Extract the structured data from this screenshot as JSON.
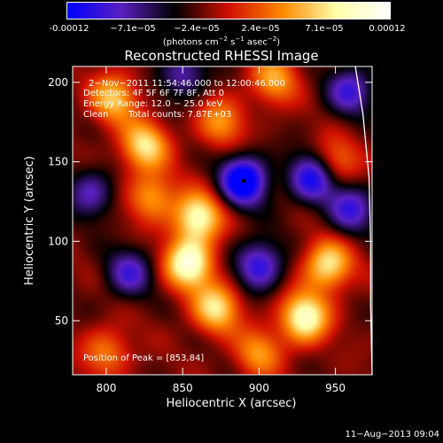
{
  "colorbar": {
    "ticks": [
      "-0.00012",
      "−7.1e−05",
      "−2.4e−05",
      "2.4e−05",
      "7.1e−05",
      "0.00012"
    ],
    "units_prefix": "(photons cm",
    "units_sup1": "−2",
    "units_mid1": " s",
    "units_sup2": "−1",
    "units_mid2": " asec",
    "units_sup3": "−2",
    "units_suffix": ")",
    "colors": [
      "#0000ff",
      "#5a20c0",
      "#000000",
      "#d01000",
      "#ff8800",
      "#ffffaa",
      "#ffffff"
    ]
  },
  "chart_data": {
    "type": "heatmap",
    "title": "Reconstructed RHESSI Image",
    "xlabel": "Heliocentric X (arcsec)",
    "ylabel": "Heliocentric Y (arcsec)",
    "xlim": [
      778,
      974
    ],
    "ylim": [
      16,
      210
    ],
    "x_ticks": [
      800,
      850,
      900,
      950
    ],
    "y_ticks": [
      50,
      100,
      150,
      200
    ],
    "annotations": {
      "time_range": "2−Nov−2011 11:54:46.000 to 12:00:46.000",
      "detectors": "Detectors: 4F 5F 6F 7F 8F, Att 0",
      "energy_range": "Energy Range: 12.0 − 25.0 keV",
      "clean_label": "Clean",
      "total_counts": "Total counts: 7.87E+03",
      "peak_position": "Position of Peak = [853,84]"
    },
    "peak_marker": {
      "x": 890,
      "y": 138
    },
    "solar_limb": [
      [
        963,
        210
      ],
      [
        968,
        180
      ],
      [
        972,
        140
      ],
      [
        973,
        100
      ],
      [
        973,
        60
      ],
      [
        974,
        16
      ]
    ],
    "bright_regions": [
      {
        "x": 854,
        "y": 86,
        "intensity": 1.0
      },
      {
        "x": 930,
        "y": 52,
        "intensity": 0.95
      },
      {
        "x": 860,
        "y": 115,
        "intensity": 0.9
      },
      {
        "x": 825,
        "y": 160,
        "intensity": 0.75
      },
      {
        "x": 945,
        "y": 85,
        "intensity": 0.8
      },
      {
        "x": 872,
        "y": 58,
        "intensity": 0.75
      },
      {
        "x": 805,
        "y": 190,
        "intensity": 0.65
      },
      {
        "x": 910,
        "y": 202,
        "intensity": 0.55
      },
      {
        "x": 830,
        "y": 128,
        "intensity": 0.55
      },
      {
        "x": 875,
        "y": 175,
        "intensity": 0.5
      },
      {
        "x": 950,
        "y": 150,
        "intensity": 0.45
      },
      {
        "x": 800,
        "y": 30,
        "intensity": 0.45
      },
      {
        "x": 900,
        "y": 30,
        "intensity": 0.5
      }
    ],
    "dark_regions": [
      {
        "x": 890,
        "y": 138,
        "intensity": -1.0
      },
      {
        "x": 935,
        "y": 140,
        "intensity": -0.8
      },
      {
        "x": 960,
        "y": 195,
        "intensity": -0.6
      },
      {
        "x": 815,
        "y": 80,
        "intensity": -0.55
      },
      {
        "x": 900,
        "y": 85,
        "intensity": -0.7
      },
      {
        "x": 790,
        "y": 130,
        "intensity": -0.5
      },
      {
        "x": 850,
        "y": 205,
        "intensity": -0.5
      },
      {
        "x": 960,
        "y": 120,
        "intensity": -0.6
      }
    ]
  },
  "footer_date": "11−Aug−2013 09:04"
}
